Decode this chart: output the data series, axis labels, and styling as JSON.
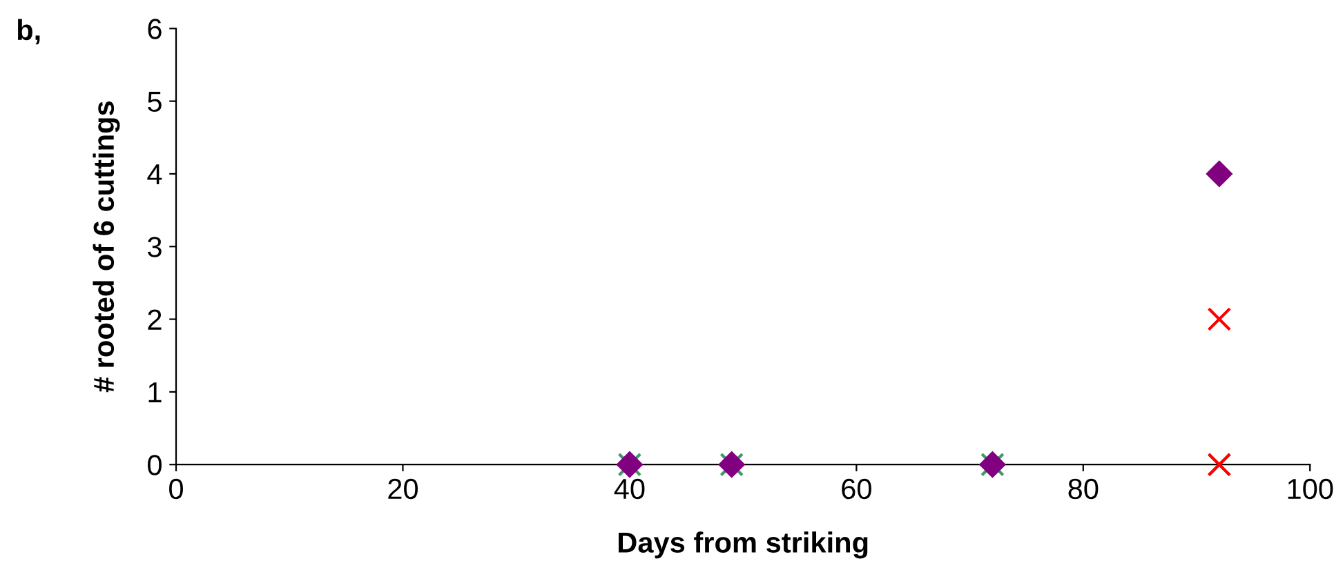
{
  "chart_data": {
    "type": "scatter",
    "xlabel": "Days from striking",
    "ylabel": "# rooted of 6 cuttings",
    "annotations": [
      "b,"
    ],
    "x": [
      40,
      49,
      72,
      92
    ],
    "series": [
      {
        "color": "#3a9a6a",
        "marker": "cross",
        "values": [
          0,
          0,
          0,
          0
        ]
      },
      {
        "color": "#ff0000",
        "marker": "cross",
        "x": [
          92,
          92
        ],
        "values": [
          0,
          2
        ]
      },
      {
        "color": "#800080",
        "marker": "diamond",
        "values": [
          0,
          0,
          0,
          4
        ]
      }
    ],
    "xlim": [
      0,
      100
    ],
    "xticks": [
      0,
      20,
      40,
      60,
      80,
      100
    ],
    "ylim": [
      0,
      6
    ],
    "yticks": [
      0,
      1,
      2,
      3,
      4,
      5,
      6
    ],
    "grid": false,
    "legend": false
  }
}
